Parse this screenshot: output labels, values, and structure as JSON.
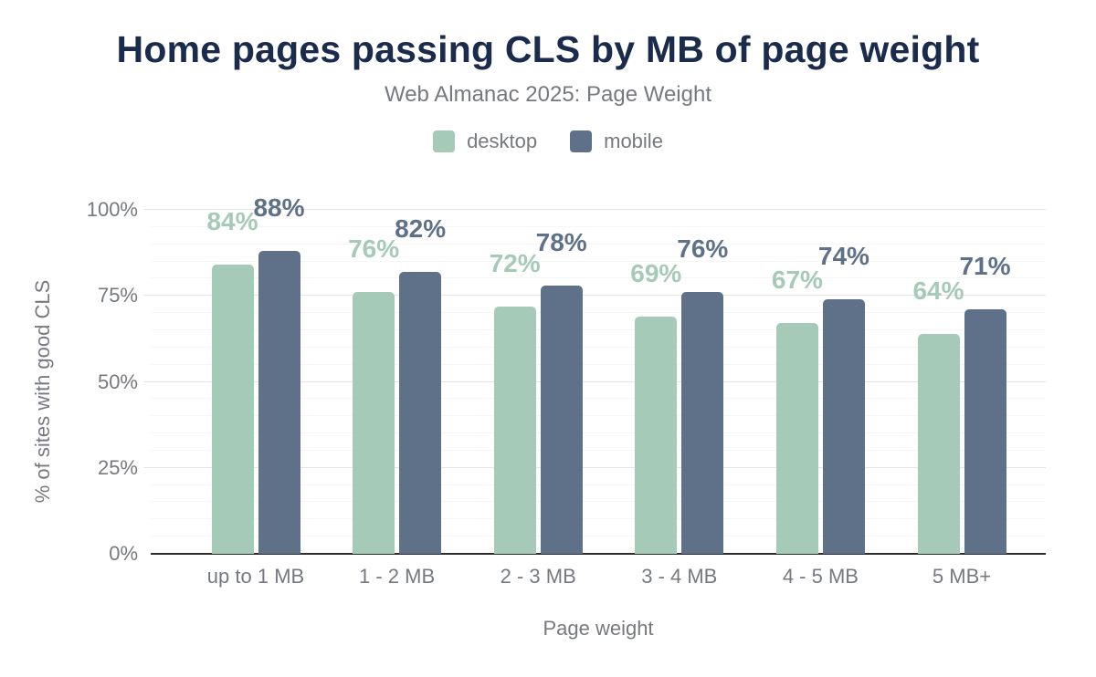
{
  "chart_data": {
    "type": "bar",
    "title": "Home pages passing CLS by MB of page weight",
    "subtitle": "Web Almanac 2025: Page Weight",
    "categories": [
      "up to 1 MB",
      "1 - 2 MB",
      "2 - 3 MB",
      "3 - 4 MB",
      "4 - 5 MB",
      "5 MB+"
    ],
    "series": [
      {
        "name": "desktop",
        "color": "#a6cab8",
        "values": [
          84,
          76,
          72,
          69,
          67,
          64
        ]
      },
      {
        "name": "mobile",
        "color": "#5f7189",
        "values": [
          88,
          82,
          78,
          76,
          74,
          71
        ]
      }
    ],
    "value_suffix": "%",
    "xlabel": "Page weight",
    "ylabel": "% of sites with good CLS",
    "ylim": [
      0,
      100
    ],
    "yticks": [
      0,
      25,
      50,
      75,
      100
    ],
    "ytick_labels": [
      "0%",
      "25%",
      "50%",
      "75%",
      "100%"
    ],
    "minor_grid_step": 5,
    "grid": true,
    "legend_position": "top",
    "data_labels": true
  },
  "colors": {
    "background": "#ffffff",
    "title": "#1b2b4b",
    "axis_text": "#76797e",
    "axis_line": "#2d2d2d",
    "grid_major": "#e3e5e5",
    "grid_minor": "#f5f6f6"
  }
}
